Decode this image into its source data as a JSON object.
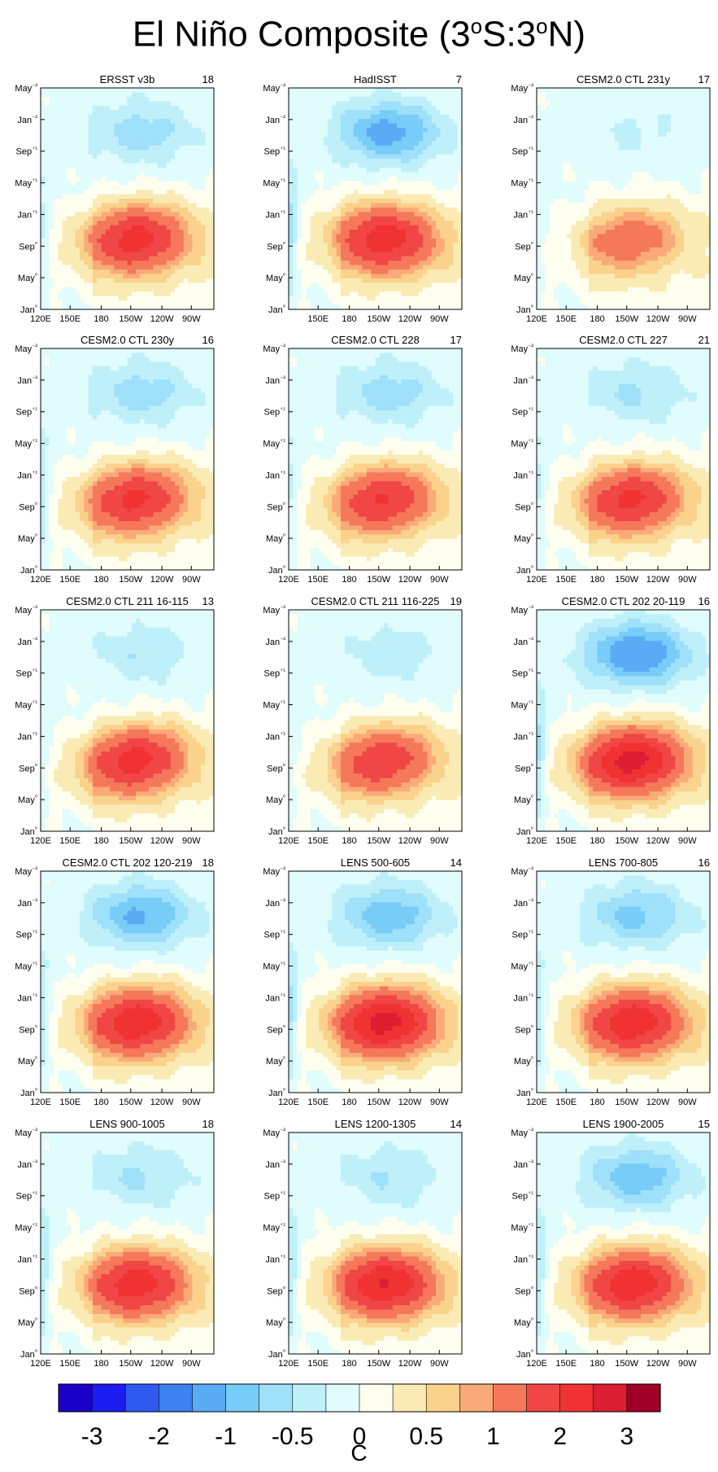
{
  "page_title": "El Niño Composite (3°S:3°N)",
  "page_title_parts": {
    "a": "El Niño Composite (3",
    "b": "o",
    "c": "S:3",
    "d": "o",
    "e": "N)"
  },
  "colors": {
    "levels": [
      "#1a00c8",
      "#1c1cf0",
      "#2e5af0",
      "#3c82f0",
      "#5aaaf5",
      "#78ccf8",
      "#9fe0fa",
      "#bff0fa",
      "#e0fcfc",
      "#fffff0",
      "#faebb4",
      "#fad28c",
      "#faaa78",
      "#f5785a",
      "#f04646",
      "#f03232",
      "#dc1e32",
      "#a00028"
    ],
    "contour": "#606060"
  },
  "colorbar": {
    "tick_labels": [
      "-3",
      "-2",
      "-1",
      "-0.5",
      "0",
      "0.5",
      "1",
      "2",
      "3"
    ],
    "label": "C"
  },
  "chart_data": [
    {
      "type": "heatmap",
      "title": "ERSST v3b",
      "count": "18",
      "xlabels": [
        "120E",
        "150E",
        "180",
        "150W",
        "120W",
        "90W"
      ],
      "ylabels": [
        "May⁻²",
        "Jan⁻²",
        "Sep⁺¹",
        "May⁺¹",
        "Jan⁺¹",
        "Sep⁰",
        "May⁰",
        "Jan⁰"
      ],
      "peak": 2.1,
      "cold": -0.6,
      "slope": 0.5,
      "westcold": 0.3
    },
    {
      "type": "heatmap",
      "title": "HadISST",
      "count": "7",
      "xlabels": [
        "150E",
        "180",
        "150W",
        "120W",
        "90W"
      ],
      "ylabels": [
        "May⁻²",
        "Jan⁻²",
        "Sep⁺¹",
        "May⁺¹",
        "Jan⁺¹",
        "Sep⁰",
        "May⁰",
        "Jan⁰"
      ],
      "peak": 2.2,
      "cold": -1.1,
      "slope": 0.2,
      "westcold": 0.6
    },
    {
      "type": "heatmap",
      "title": "CESM2.0 CTL 231y",
      "count": "17",
      "xlabels": [
        "120E",
        "150E",
        "180",
        "150W",
        "120W",
        "90W"
      ],
      "ylabels": [
        "May⁻²",
        "Jan⁻²",
        "Sep⁺¹",
        "May⁺¹",
        "Jan⁺¹",
        "Sep⁰",
        "May⁰",
        "Jan⁰"
      ],
      "peak": 1.2,
      "cold": -0.25,
      "slope": 1.0,
      "westcold": 0.1
    },
    {
      "type": "heatmap",
      "title": "CESM2.0 CTL 230y",
      "count": "16",
      "xlabels": [
        "120E",
        "150E",
        "180",
        "150W",
        "120W",
        "90W"
      ],
      "ylabels": [
        "May⁻²",
        "Jan⁻²",
        "Sep⁺¹",
        "May⁺¹",
        "Jan⁺¹",
        "Sep⁰",
        "May⁰",
        "Jan⁰"
      ],
      "peak": 2.0,
      "cold": -0.6,
      "slope": 0.8,
      "westcold": 0.4
    },
    {
      "type": "heatmap",
      "title": "CESM2.0 CTL 228",
      "count": "17",
      "xlabels": [
        "120E",
        "150E",
        "180",
        "150W",
        "120W",
        "90W"
      ],
      "ylabels": [
        "May⁻²",
        "Jan⁻²",
        "Sep⁺¹",
        "May⁺¹",
        "Jan⁺¹",
        "Sep⁰",
        "May⁰",
        "Jan⁰"
      ],
      "peak": 1.9,
      "cold": -0.6,
      "slope": 0.9,
      "westcold": 0.3
    },
    {
      "type": "heatmap",
      "title": "CESM2.0 CTL 227",
      "count": "21",
      "xlabels": [
        "120E",
        "150E",
        "180",
        "150W",
        "120W",
        "90W"
      ],
      "ylabels": [
        "May⁻²",
        "Jan⁻²",
        "Sep⁺¹",
        "May⁺¹",
        "Jan⁺¹",
        "Sep⁰",
        "May⁰",
        "Jan⁰"
      ],
      "peak": 2.0,
      "cold": -0.5,
      "slope": 0.7,
      "westcold": 0.3
    },
    {
      "type": "heatmap",
      "title": "CESM2.0 CTL 211 16-115",
      "count": "13",
      "xlabels": [
        "120E",
        "150E",
        "180",
        "150W",
        "120W",
        "90W"
      ],
      "ylabels": [
        "May⁻²",
        "Jan⁻²",
        "Sep⁺¹",
        "May⁺¹",
        "Jan⁺¹",
        "Sep⁰",
        "May⁰",
        "Jan⁰"
      ],
      "peak": 2.1,
      "cold": -0.4,
      "slope": 0.9,
      "westcold": 0.2
    },
    {
      "type": "heatmap",
      "title": "CESM2.0 CTL 211 116-225",
      "count": "19",
      "xlabels": [
        "120E",
        "150E",
        "180",
        "150W",
        "120W",
        "90W"
      ],
      "ylabels": [
        "May⁻²",
        "Jan⁻²",
        "Sep⁺¹",
        "May⁺¹",
        "Jan⁺¹",
        "Sep⁰",
        "May⁰",
        "Jan⁰"
      ],
      "peak": 1.8,
      "cold": -0.35,
      "slope": 1.0,
      "westcold": 0.2
    },
    {
      "type": "heatmap",
      "title": "CESM2.0 CTL 202 20-119",
      "count": "16",
      "xlabels": [
        "120E",
        "150E",
        "180",
        "150W",
        "120W",
        "90W"
      ],
      "ylabels": [
        "May⁻²",
        "Jan⁻²",
        "Sep⁺¹",
        "May⁺¹",
        "Jan⁺¹",
        "Sep⁰",
        "May⁰",
        "Jan⁰"
      ],
      "peak": 2.6,
      "cold": -1.3,
      "slope": 0.5,
      "westcold": 0.6
    },
    {
      "type": "heatmap",
      "title": "CESM2.0 CTL 202 120-219",
      "count": "18",
      "xlabels": [
        "120E",
        "150E",
        "180",
        "150W",
        "120W",
        "90W"
      ],
      "ylabels": [
        "May⁻²",
        "Jan⁻²",
        "Sep⁺¹",
        "May⁺¹",
        "Jan⁺¹",
        "Sep⁰",
        "May⁰",
        "Jan⁰"
      ],
      "peak": 2.3,
      "cold": -1.0,
      "slope": 0.4,
      "westcold": 0.4
    },
    {
      "type": "heatmap",
      "title": "LENS 500-605",
      "count": "14",
      "xlabels": [
        "120E",
        "150E",
        "180",
        "150W",
        "120W",
        "90W"
      ],
      "ylabels": [
        "May⁻²",
        "Jan⁻²",
        "Sep⁺¹",
        "May⁺¹",
        "Jan⁺¹",
        "Sep⁰",
        "May⁰",
        "Jan⁰"
      ],
      "peak": 2.6,
      "cold": -0.9,
      "slope": 0.3,
      "westcold": 0.6
    },
    {
      "type": "heatmap",
      "title": "LENS 700-805",
      "count": "16",
      "xlabels": [
        "120E",
        "150E",
        "180",
        "150W",
        "120W",
        "90W"
      ],
      "ylabels": [
        "May⁻²",
        "Jan⁻²",
        "Sep⁺¹",
        "May⁺¹",
        "Jan⁺¹",
        "Sep⁰",
        "May⁰",
        "Jan⁰"
      ],
      "peak": 2.3,
      "cold": -0.8,
      "slope": 0.3,
      "westcold": 0.4
    },
    {
      "type": "heatmap",
      "title": "LENS 900-1005",
      "count": "18",
      "xlabels": [
        "120E",
        "150E",
        "180",
        "150W",
        "120W",
        "90W"
      ],
      "ylabels": [
        "May⁻²",
        "Jan⁻²",
        "Sep⁺¹",
        "May⁺¹",
        "Jan⁺¹",
        "Sep⁰",
        "May⁰",
        "Jan⁰"
      ],
      "peak": 2.2,
      "cold": -0.5,
      "slope": 0.3,
      "westcold": 0.5
    },
    {
      "type": "heatmap",
      "title": "LENS 1200-1305",
      "count": "14",
      "xlabels": [
        "120E",
        "150E",
        "180",
        "150W",
        "120W",
        "90W"
      ],
      "ylabels": [
        "May⁻²",
        "Jan⁻²",
        "Sep⁺¹",
        "May⁺¹",
        "Jan⁺¹",
        "Sep⁰",
        "May⁰",
        "Jan⁰"
      ],
      "peak": 2.4,
      "cold": -0.45,
      "slope": 0.2,
      "westcold": 0.5
    },
    {
      "type": "heatmap",
      "title": "LENS 1900-2005",
      "count": "15",
      "xlabels": [
        "120E",
        "150E",
        "180",
        "150W",
        "120W",
        "90W"
      ],
      "ylabels": [
        "May⁻²",
        "Jan⁻²",
        "Sep⁺¹",
        "May⁺¹",
        "Jan⁺¹",
        "Sep⁰",
        "May⁰",
        "Jan⁰"
      ],
      "peak": 2.3,
      "cold": -0.9,
      "slope": 0.3,
      "westcold": 0.5
    }
  ]
}
